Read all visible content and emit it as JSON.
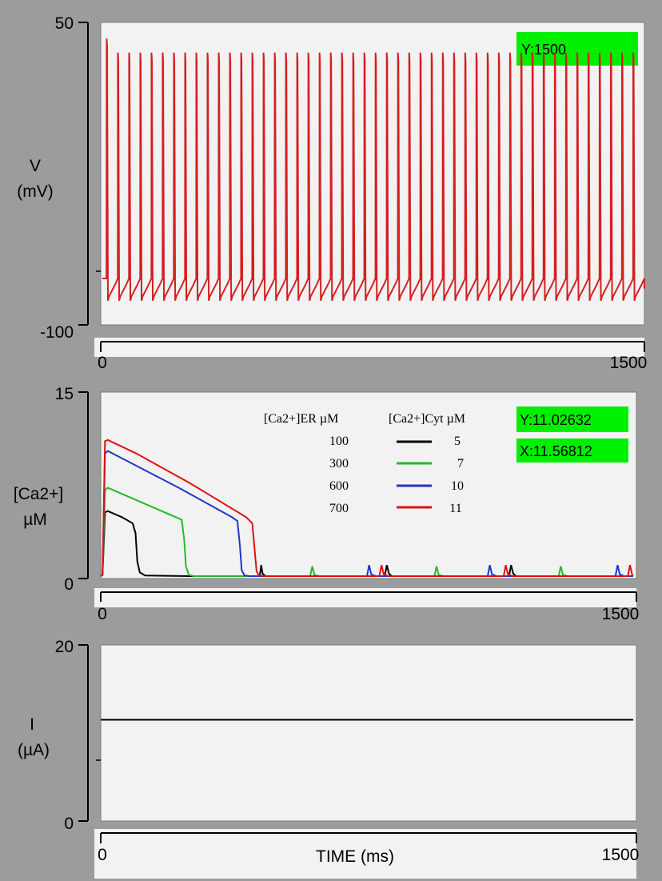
{
  "chart_data": [
    {
      "type": "line",
      "ylabel_top": "V",
      "ylabel_bottom": "(mV)",
      "y_ticks": [
        "50",
        "-100"
      ],
      "x_ticks": [
        "0",
        "1500"
      ],
      "xlim": [
        0,
        1500
      ],
      "ylim": [
        -100,
        50
      ],
      "readouts": {
        "y": "Y:1500"
      },
      "series": [
        {
          "color": "#d42020",
          "spike_count": 48,
          "spike_peak": 35,
          "first_peak": 42,
          "trough": -88,
          "ahp": -80,
          "resting_start": -77
        }
      ]
    },
    {
      "type": "line",
      "ylabel_top": "[Ca2+]",
      "ylabel_bottom": "µM",
      "y_ticks": [
        "15",
        "0"
      ],
      "x_ticks": [
        "0",
        "1500"
      ],
      "xlim": [
        0,
        1500
      ],
      "ylim": [
        0,
        15
      ],
      "readouts": {
        "y": "Y:11.02632",
        "x": "X:11.56812"
      },
      "legend": {
        "header_er": "[Ca2+]ER µM",
        "header_cyt": "[Ca2+]Cyt µM",
        "rows": [
          {
            "er": "100",
            "cyt": "5",
            "color": "#000000"
          },
          {
            "er": "300",
            "cyt": "7",
            "color": "#22bb22"
          },
          {
            "er": "600",
            "cyt": "10",
            "color": "#2233cc"
          },
          {
            "er": "700",
            "cyt": "11",
            "color": "#dd1111"
          }
        ]
      },
      "series": [
        {
          "color": "#000000",
          "points": [
            [
              0,
              0
            ],
            [
              5,
              0.1
            ],
            [
              12,
              5.2
            ],
            [
              20,
              5.3
            ],
            [
              60,
              4.8
            ],
            [
              90,
              4.3
            ],
            [
              98,
              3.5
            ],
            [
              103,
              1.2
            ],
            [
              110,
              0.3
            ],
            [
              125,
              0.05
            ],
            [
              250,
              0
            ],
            [
              440,
              0
            ],
            [
              448,
              0
            ],
            [
              452,
              0.9
            ],
            [
              456,
              0.2
            ],
            [
              464,
              0
            ],
            [
              795,
              0
            ],
            [
              800,
              0
            ],
            [
              806,
              0.9
            ],
            [
              812,
              0.2
            ],
            [
              820,
              0
            ],
            [
              1145,
              0
            ],
            [
              1150,
              0
            ],
            [
              1156,
              0.9
            ],
            [
              1162,
              0.2
            ],
            [
              1170,
              0
            ],
            [
              1500,
              0
            ]
          ]
        },
        {
          "color": "#22bb22",
          "points": [
            [
              0,
              0
            ],
            [
              5,
              0.1
            ],
            [
              12,
              7.0
            ],
            [
              20,
              7.2
            ],
            [
              100,
              6.2
            ],
            [
              180,
              5.2
            ],
            [
              228,
              4.6
            ],
            [
              235,
              3.0
            ],
            [
              240,
              0.8
            ],
            [
              248,
              0.1
            ],
            [
              262,
              0
            ],
            [
              590,
              0
            ],
            [
              596,
              0.8
            ],
            [
              602,
              0.1
            ],
            [
              615,
              0
            ],
            [
              940,
              0
            ],
            [
              946,
              0.8
            ],
            [
              952,
              0.1
            ],
            [
              965,
              0
            ],
            [
              1290,
              0
            ],
            [
              1296,
              0.8
            ],
            [
              1302,
              0.1
            ],
            [
              1315,
              0
            ],
            [
              1500,
              0
            ]
          ]
        },
        {
          "color": "#2233cc",
          "points": [
            [
              0,
              0
            ],
            [
              5,
              0.1
            ],
            [
              12,
              10.0
            ],
            [
              20,
              10.2
            ],
            [
              100,
              9.0
            ],
            [
              220,
              7.2
            ],
            [
              370,
              4.8
            ],
            [
              385,
              4.5
            ],
            [
              392,
              2.5
            ],
            [
              397,
              0.5
            ],
            [
              405,
              0.05
            ],
            [
              420,
              0
            ],
            [
              750,
              0
            ],
            [
              756,
              0.9
            ],
            [
              762,
              0.15
            ],
            [
              775,
              0
            ],
            [
              1090,
              0
            ],
            [
              1096,
              0.9
            ],
            [
              1102,
              0.15
            ],
            [
              1115,
              0
            ],
            [
              1450,
              0
            ],
            [
              1456,
              0.9
            ],
            [
              1462,
              0.15
            ],
            [
              1475,
              0
            ],
            [
              1500,
              0
            ]
          ]
        },
        {
          "color": "#dd1111",
          "points": [
            [
              0,
              0
            ],
            [
              5,
              0.1
            ],
            [
              12,
              11.0
            ],
            [
              20,
              11.1
            ],
            [
              100,
              10.0
            ],
            [
              250,
              7.6
            ],
            [
              410,
              4.8
            ],
            [
              427,
              4.3
            ],
            [
              434,
              2.0
            ],
            [
              439,
              0.4
            ],
            [
              446,
              0.05
            ],
            [
              460,
              0
            ],
            [
              785,
              0
            ],
            [
              791,
              0.9
            ],
            [
              797,
              0.15
            ],
            [
              810,
              0
            ],
            [
              1135,
              0
            ],
            [
              1141,
              0.9
            ],
            [
              1147,
              0.15
            ],
            [
              1160,
              0
            ],
            [
              1485,
              0
            ],
            [
              1491,
              0.9
            ],
            [
              1497,
              0.1
            ],
            [
              1500,
              0
            ]
          ]
        }
      ]
    },
    {
      "type": "line",
      "ylabel_top": "I",
      "ylabel_bottom": "(µA)",
      "y_ticks": [
        "20",
        "0"
      ],
      "x_ticks": [
        "0",
        "1500"
      ],
      "xlabel": "TIME (ms)",
      "xlim": [
        0,
        1500
      ],
      "ylim": [
        0,
        20
      ],
      "series": [
        {
          "color": "#000000",
          "points": [
            [
              0,
              11.5
            ],
            [
              1500,
              11.5
            ]
          ]
        }
      ]
    }
  ]
}
